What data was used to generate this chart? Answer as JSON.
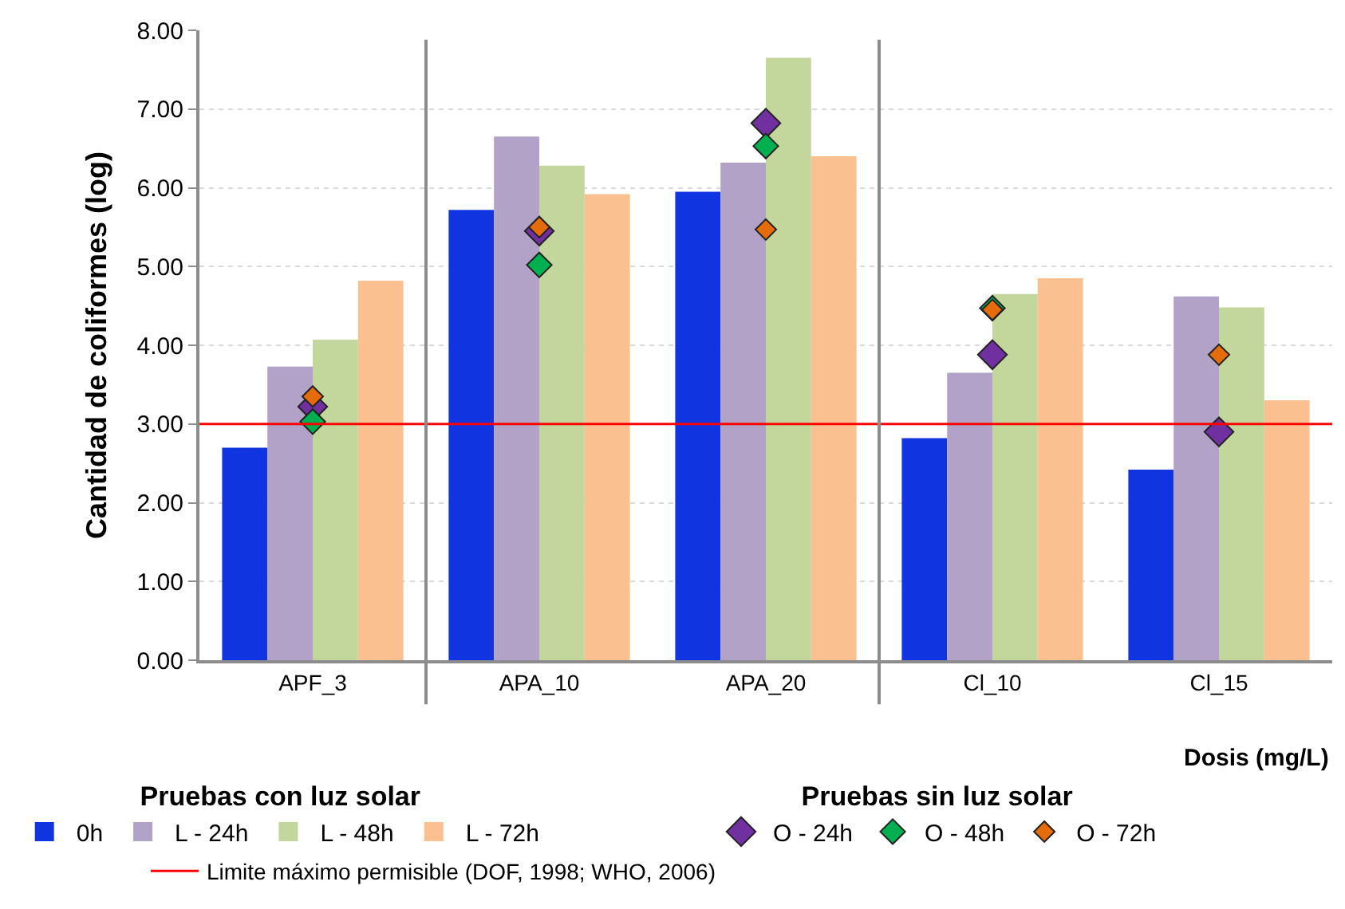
{
  "chart_data": {
    "type": "bar",
    "ylabel": "Cantidad de coliformes (log)",
    "xlabel": "Dosis (mg/L)",
    "categories": [
      "APF_3",
      "APA_10",
      "APA_20",
      "Cl_10",
      "Cl_15"
    ],
    "series": [
      {
        "name": "0h",
        "color": "#1034e0",
        "values": [
          2.7,
          5.72,
          5.95,
          2.82,
          2.42
        ]
      },
      {
        "name": "L - 24h",
        "color": "#b3a2c7",
        "values": [
          3.73,
          6.65,
          6.32,
          3.65,
          4.62
        ]
      },
      {
        "name": "L - 48h",
        "color": "#c3d69b",
        "values": [
          4.07,
          6.28,
          7.65,
          4.65,
          4.48
        ]
      },
      {
        "name": "L - 72h",
        "color": "#fac090",
        "values": [
          4.82,
          5.92,
          6.4,
          4.85,
          3.3
        ]
      },
      {
        "name": "O - 24h",
        "type": "scatter",
        "color": "#7030a0",
        "values": [
          3.22,
          5.45,
          6.82,
          3.88,
          2.9
        ]
      },
      {
        "name": "O - 48h",
        "type": "scatter",
        "color": "#00b050",
        "values": [
          3.03,
          5.02,
          6.53,
          4.47,
          null
        ]
      },
      {
        "name": "O - 72h",
        "type": "scatter",
        "color": "#e46c0a",
        "values": [
          3.35,
          5.5,
          5.47,
          4.45,
          3.88
        ]
      }
    ],
    "marker": "diamond",
    "ylim": [
      0,
      8
    ],
    "yticks": [
      {
        "value": 0,
        "label": "0.00"
      },
      {
        "value": 1,
        "label": "1.00"
      },
      {
        "value": 2,
        "label": "2.00"
      },
      {
        "value": 3,
        "label": "3.00"
      },
      {
        "value": 4,
        "label": "4.00"
      },
      {
        "value": 5,
        "label": "5.00"
      },
      {
        "value": 6,
        "label": "6.00"
      },
      {
        "value": 7,
        "label": "7.00"
      },
      {
        "value": 8,
        "label": "8.00"
      }
    ],
    "grid": "y",
    "legend": "bottom",
    "annotations": [
      "Pruebas con luz solar",
      "Pruebas sin luz solar"
    ],
    "ref_lines": [
      {
        "axis": "y",
        "value": 3,
        "label": "Limite máximo permisible (DOF, 1998; WHO, 2006)",
        "color": "#ff0000"
      }
    ]
  }
}
